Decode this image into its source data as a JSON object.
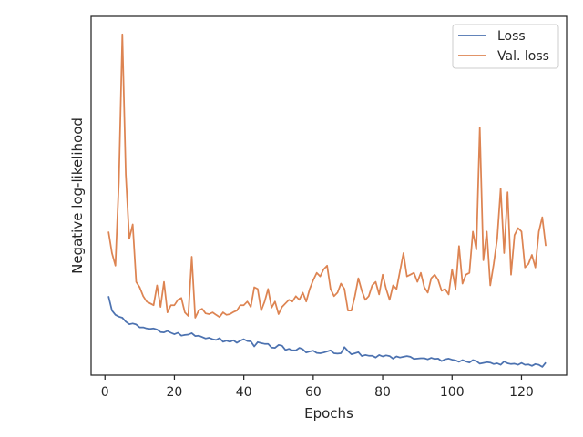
{
  "chart_data": {
    "type": "line",
    "title": "",
    "xlabel": "Epochs",
    "ylabel": "Negative log-likelihood",
    "xlim": [
      -4,
      133
    ],
    "ylim": [
      0,
      100
    ],
    "xticks": [
      0,
      20,
      40,
      60,
      80,
      100,
      120
    ],
    "y_tick_labels": "none",
    "grid": false,
    "legend": {
      "position": "top-right"
    },
    "x": [
      1,
      2,
      3,
      4,
      5,
      6,
      7,
      8,
      9,
      10,
      11,
      12,
      13,
      14,
      15,
      16,
      17,
      18,
      19,
      20,
      21,
      22,
      23,
      24,
      25,
      26,
      27,
      28,
      29,
      30,
      31,
      32,
      33,
      34,
      35,
      36,
      37,
      38,
      39,
      40,
      41,
      42,
      43,
      44,
      45,
      46,
      47,
      48,
      49,
      50,
      51,
      52,
      53,
      54,
      55,
      56,
      57,
      58,
      59,
      60,
      61,
      62,
      63,
      64,
      65,
      66,
      67,
      68,
      69,
      70,
      71,
      72,
      73,
      74,
      75,
      76,
      77,
      78,
      79,
      80,
      81,
      82,
      83,
      84,
      85,
      86,
      87,
      88,
      89,
      90,
      91,
      92,
      93,
      94,
      95,
      96,
      97,
      98,
      99,
      100,
      101,
      102,
      103,
      104,
      105,
      106,
      107,
      108,
      109,
      110,
      111,
      112,
      113,
      114,
      115,
      116,
      117,
      118,
      119,
      120,
      121,
      122,
      123,
      124,
      125,
      126,
      127
    ],
    "series": [
      {
        "name": "Loss",
        "color": "#4c72b0",
        "values": [
          22.0,
          18.0,
          16.8,
          16.3,
          16.0,
          14.9,
          14.2,
          14.4,
          14.1,
          13.3,
          13.3,
          13.0,
          12.9,
          13.0,
          12.7,
          12.0,
          11.9,
          12.3,
          11.8,
          11.4,
          11.8,
          11.0,
          11.2,
          11.3,
          11.7,
          10.9,
          11.0,
          10.6,
          10.2,
          10.4,
          10.0,
          9.8,
          10.3,
          9.3,
          9.6,
          9.3,
          9.7,
          9.0,
          9.6,
          10.0,
          9.5,
          9.4,
          8.0,
          9.2,
          8.9,
          8.7,
          8.7,
          7.7,
          7.6,
          8.4,
          8.2,
          7.0,
          7.3,
          6.9,
          6.9,
          7.6,
          7.2,
          6.3,
          6.6,
          6.8,
          6.2,
          6.1,
          6.3,
          6.6,
          6.9,
          6.1,
          6.0,
          6.1,
          7.8,
          6.7,
          5.8,
          6.1,
          6.4,
          5.3,
          5.6,
          5.4,
          5.4,
          4.9,
          5.6,
          5.2,
          5.5,
          5.3,
          4.6,
          5.2,
          4.9,
          5.1,
          5.3,
          5.1,
          4.5,
          4.6,
          4.7,
          4.7,
          4.4,
          4.8,
          4.5,
          4.6,
          3.9,
          4.4,
          4.6,
          4.3,
          4.1,
          3.7,
          4.2,
          3.8,
          3.5,
          4.2,
          3.9,
          3.2,
          3.4,
          3.6,
          3.5,
          3.1,
          3.3,
          2.9,
          3.8,
          3.3,
          3.1,
          3.2,
          2.9,
          3.4,
          2.9,
          3.0,
          2.6,
          3.1,
          2.9,
          2.3,
          3.5
        ]
      },
      {
        "name": "Val. loss",
        "color": "#dd8452",
        "values": [
          40.0,
          34.0,
          30.5,
          54.0,
          95.0,
          56.0,
          38.0,
          42.0,
          26.0,
          24.5,
          22.0,
          20.5,
          20.0,
          19.5,
          25.0,
          19.0,
          26.0,
          17.5,
          19.5,
          19.5,
          21.0,
          21.5,
          17.5,
          16.5,
          33.0,
          16.0,
          18.0,
          18.5,
          17.2,
          17.0,
          17.5,
          16.8,
          16.2,
          17.5,
          16.8,
          17.0,
          17.6,
          18.0,
          19.5,
          19.5,
          20.5,
          19.0,
          24.5,
          24.0,
          18.0,
          20.5,
          24.0,
          18.8,
          20.5,
          17.0,
          19.0,
          20.0,
          21.0,
          20.5,
          22.0,
          21.0,
          23.0,
          20.5,
          24.0,
          26.5,
          28.5,
          27.5,
          29.5,
          30.5,
          24.0,
          22.0,
          23.0,
          25.5,
          24.0,
          18.0,
          18.0,
          22.0,
          27.0,
          23.5,
          21.0,
          22.0,
          25.0,
          26.0,
          22.5,
          28.0,
          24.0,
          21.0,
          25.0,
          24.0,
          29.0,
          34.0,
          27.5,
          28.0,
          28.5,
          26.0,
          28.5,
          24.5,
          23.0,
          27.0,
          28.0,
          26.5,
          23.5,
          24.0,
          22.5,
          29.5,
          24.0,
          36.0,
          25.5,
          28.0,
          28.5,
          40.0,
          35.0,
          69.0,
          32.0,
          40.0,
          25.0,
          31.0,
          38.0,
          52.0,
          34.0,
          51.0,
          28.0,
          39.0,
          41.0,
          40.0,
          30.0,
          31.0,
          33.5,
          30.0,
          40.0,
          44.0,
          36.0
        ]
      }
    ]
  }
}
